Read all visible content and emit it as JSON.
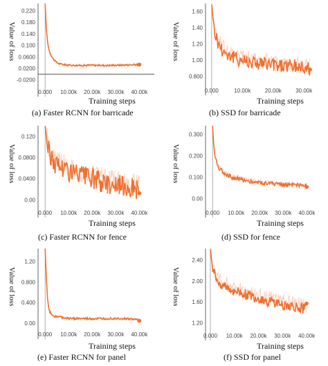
{
  "chart_data": [
    {
      "id": "a",
      "type": "line",
      "caption": "(a) Faster RCNN for barricade",
      "xlabel": "Training steps",
      "ylabel": "Value of loss",
      "xticks": [
        "0.000",
        "10.00k",
        "20.00k",
        "30.00k",
        "40.00k"
      ],
      "yticks": [
        "0.220",
        "0.180",
        "0.140",
        "0.100",
        "0.0600",
        "0.0200",
        "-0.0200"
      ],
      "xlim": [
        -3000,
        44000
      ],
      "ylim": [
        -0.035,
        0.245
      ],
      "zero_line": true,
      "series": [
        {
          "x": [
            0,
            500,
            1000,
            1500,
            2000,
            3000,
            4000,
            5000,
            6000,
            8000,
            10000,
            15000,
            20000,
            25000,
            30000,
            35000,
            40000
          ],
          "y": [
            0.245,
            0.16,
            0.115,
            0.09,
            0.075,
            0.058,
            0.047,
            0.04,
            0.036,
            0.033,
            0.031,
            0.03,
            0.031,
            0.03,
            0.031,
            0.032,
            0.033
          ],
          "noise": 0.003,
          "band": 0.005
        }
      ],
      "color": "#f07030"
    },
    {
      "id": "b",
      "type": "line",
      "caption": "(b) SSD for barricade",
      "xlabel": "Training steps",
      "ylabel": "Value of loss",
      "xticks": [
        "0.000",
        "10.00k",
        "20.00k",
        "30.00k"
      ],
      "yticks": [
        "1.60",
        "1.40",
        "1.20",
        "1.00",
        "0.800"
      ],
      "xlim": [
        -2000,
        34000
      ],
      "ylim": [
        0.72,
        1.7
      ],
      "series": [
        {
          "x": [
            0,
            500,
            1000,
            2000,
            3000,
            5000,
            8000,
            12000,
            16000,
            20000,
            25000,
            30000,
            32000
          ],
          "y": [
            1.7,
            1.5,
            1.35,
            1.22,
            1.15,
            1.08,
            1.02,
            0.99,
            0.96,
            0.94,
            0.93,
            0.91,
            0.9
          ],
          "noise": 0.09,
          "band": 0.2
        }
      ],
      "color": "#f07030"
    },
    {
      "id": "c",
      "type": "line",
      "caption": "(c) Faster RCNN for fence",
      "xlabel": "Training steps",
      "ylabel": "Value of loss",
      "xticks": [
        "0.000",
        "10.00k",
        "20.00k",
        "30.00k",
        "40.00k"
      ],
      "yticks": [
        "0.120",
        "0.0800",
        "0.0400",
        "0.00"
      ],
      "xlim": [
        -3000,
        44000
      ],
      "ylim": [
        -0.01,
        0.14
      ],
      "series": [
        {
          "x": [
            0,
            1000,
            2000,
            4000,
            6000,
            8000,
            10000,
            15000,
            20000,
            25000,
            30000,
            35000,
            40000
          ],
          "y": [
            0.14,
            0.1,
            0.085,
            0.07,
            0.065,
            0.06,
            0.055,
            0.045,
            0.04,
            0.032,
            0.028,
            0.025,
            0.02
          ],
          "noise": 0.02,
          "band": 0.04
        }
      ],
      "color": "#f07030"
    },
    {
      "id": "d",
      "type": "line",
      "caption": "(d) SSD for fence",
      "xlabel": "Training steps",
      "ylabel": "Value of loss",
      "xticks": [
        "0.000",
        "10.00k",
        "20.00k",
        "30.00k",
        "40.00k"
      ],
      "yticks": [
        "0.300",
        "0.200",
        "0.100",
        "0.00"
      ],
      "xlim": [
        -3000,
        44000
      ],
      "ylim": [
        -0.03,
        0.34
      ],
      "series": [
        {
          "x": [
            0,
            500,
            1000,
            2000,
            3000,
            5000,
            8000,
            12000,
            16000,
            20000,
            25000,
            30000,
            35000,
            40000
          ],
          "y": [
            0.34,
            0.25,
            0.2,
            0.16,
            0.14,
            0.12,
            0.1,
            0.09,
            0.08,
            0.075,
            0.07,
            0.065,
            0.062,
            0.06
          ],
          "noise": 0.01,
          "band": 0.02
        }
      ],
      "color": "#f07030"
    },
    {
      "id": "e",
      "type": "line",
      "caption": "(e) Faster RCNN for panel",
      "xlabel": "Training steps",
      "ylabel": "Value of loss",
      "xticks": [
        "0.000",
        "10.00k",
        "20.00k",
        "30.00k",
        "40.00k"
      ],
      "yticks": [
        "1.20",
        "0.800",
        "0.400",
        "0.00"
      ],
      "xlim": [
        -3000,
        44000
      ],
      "ylim": [
        -0.07,
        1.45
      ],
      "series": [
        {
          "x": [
            0,
            500,
            1000,
            1500,
            2000,
            3000,
            4000,
            6000,
            8000,
            10000,
            15000,
            20000,
            25000,
            30000,
            35000,
            40000
          ],
          "y": [
            1.45,
            0.9,
            0.5,
            0.3,
            0.22,
            0.16,
            0.13,
            0.12,
            0.1,
            0.09,
            0.085,
            0.08,
            0.085,
            0.09,
            0.08,
            0.06
          ],
          "noise": 0.02,
          "band": 0.04
        }
      ],
      "color": "#f07030"
    },
    {
      "id": "f",
      "type": "line",
      "caption": "(f) SSD for panel",
      "xlabel": "Training steps",
      "ylabel": "Value of loss",
      "xticks": [
        "0.000",
        "10.00k",
        "20.00k",
        "30.00k",
        "40.00k"
      ],
      "yticks": [
        "2.40",
        "2.00",
        "1.60",
        "1.20"
      ],
      "xlim": [
        -2000,
        44000
      ],
      "ylim": [
        1.1,
        2.62
      ],
      "series": [
        {
          "x": [
            0,
            500,
            1000,
            2000,
            3000,
            5000,
            8000,
            12000,
            16000,
            20000,
            25000,
            30000,
            35000,
            40000
          ],
          "y": [
            2.62,
            2.4,
            2.25,
            2.1,
            2.0,
            1.92,
            1.85,
            1.78,
            1.72,
            1.66,
            1.6,
            1.55,
            1.5,
            1.47
          ],
          "noise": 0.1,
          "band": 0.3
        }
      ],
      "color": "#f07030"
    }
  ]
}
